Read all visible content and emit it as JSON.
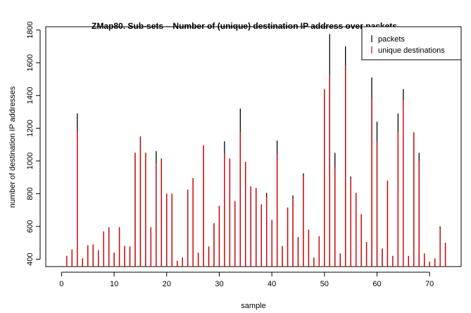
{
  "chart_data": {
    "type": "bar",
    "title": "ZMap80. Sub-sets – Number of (unique) destination IP address over packets",
    "xlabel": "sample",
    "ylabel": "number of destination IP addresses",
    "xlim": [
      -3,
      76
    ],
    "ylim": [
      355,
      1820
    ],
    "xticks": [
      0,
      10,
      20,
      30,
      40,
      50,
      60,
      70
    ],
    "yticks": [
      400,
      600,
      800,
      1000,
      1200,
      1400,
      1600,
      1800
    ],
    "grid": false,
    "legend_position": "top-right",
    "x": [
      1,
      2,
      3,
      4,
      5,
      6,
      7,
      8,
      9,
      10,
      11,
      12,
      13,
      14,
      15,
      16,
      17,
      18,
      19,
      20,
      21,
      22,
      23,
      24,
      25,
      26,
      27,
      28,
      29,
      30,
      31,
      32,
      33,
      34,
      35,
      36,
      37,
      38,
      39,
      40,
      41,
      42,
      43,
      44,
      45,
      46,
      47,
      48,
      49,
      50,
      51,
      52,
      53,
      54,
      55,
      56,
      57,
      58,
      59,
      60,
      61,
      62,
      63,
      64,
      65,
      66,
      67,
      68,
      69,
      70,
      71,
      72,
      73
    ],
    "series": [
      {
        "name": "packets",
        "color": "#000000",
        "values": [
          420,
          460,
          1290,
          405,
          485,
          490,
          455,
          570,
          595,
          440,
          595,
          480,
          478,
          1050,
          1150,
          1050,
          595,
          1060,
          1015,
          800,
          800,
          390,
          410,
          825,
          895,
          440,
          1095,
          478,
          620,
          725,
          1120,
          1015,
          755,
          1320,
          995,
          845,
          835,
          735,
          805,
          640,
          1125,
          480,
          715,
          790,
          535,
          925,
          580,
          410,
          540,
          1440,
          1775,
          1050,
          435,
          1700,
          905,
          805,
          675,
          505,
          1510,
          1240,
          465,
          880,
          420,
          1290,
          1440,
          420,
          1175,
          1050,
          435,
          385,
          405,
          600,
          500
        ]
      },
      {
        "name": "unique destinations",
        "color": "#e00000",
        "values": [
          420,
          460,
          1180,
          405,
          485,
          490,
          455,
          570,
          595,
          440,
          595,
          480,
          478,
          1050,
          1150,
          1050,
          595,
          985,
          1015,
          800,
          800,
          390,
          410,
          825,
          895,
          440,
          1095,
          478,
          620,
          725,
          1045,
          1015,
          755,
          1175,
          995,
          845,
          835,
          735,
          780,
          640,
          1040,
          480,
          715,
          770,
          535,
          910,
          580,
          410,
          540,
          1440,
          1525,
          960,
          435,
          1580,
          890,
          805,
          675,
          505,
          1380,
          1120,
          465,
          880,
          420,
          1175,
          1370,
          420,
          1175,
          1000,
          435,
          385,
          405,
          590,
          500
        ]
      }
    ]
  }
}
